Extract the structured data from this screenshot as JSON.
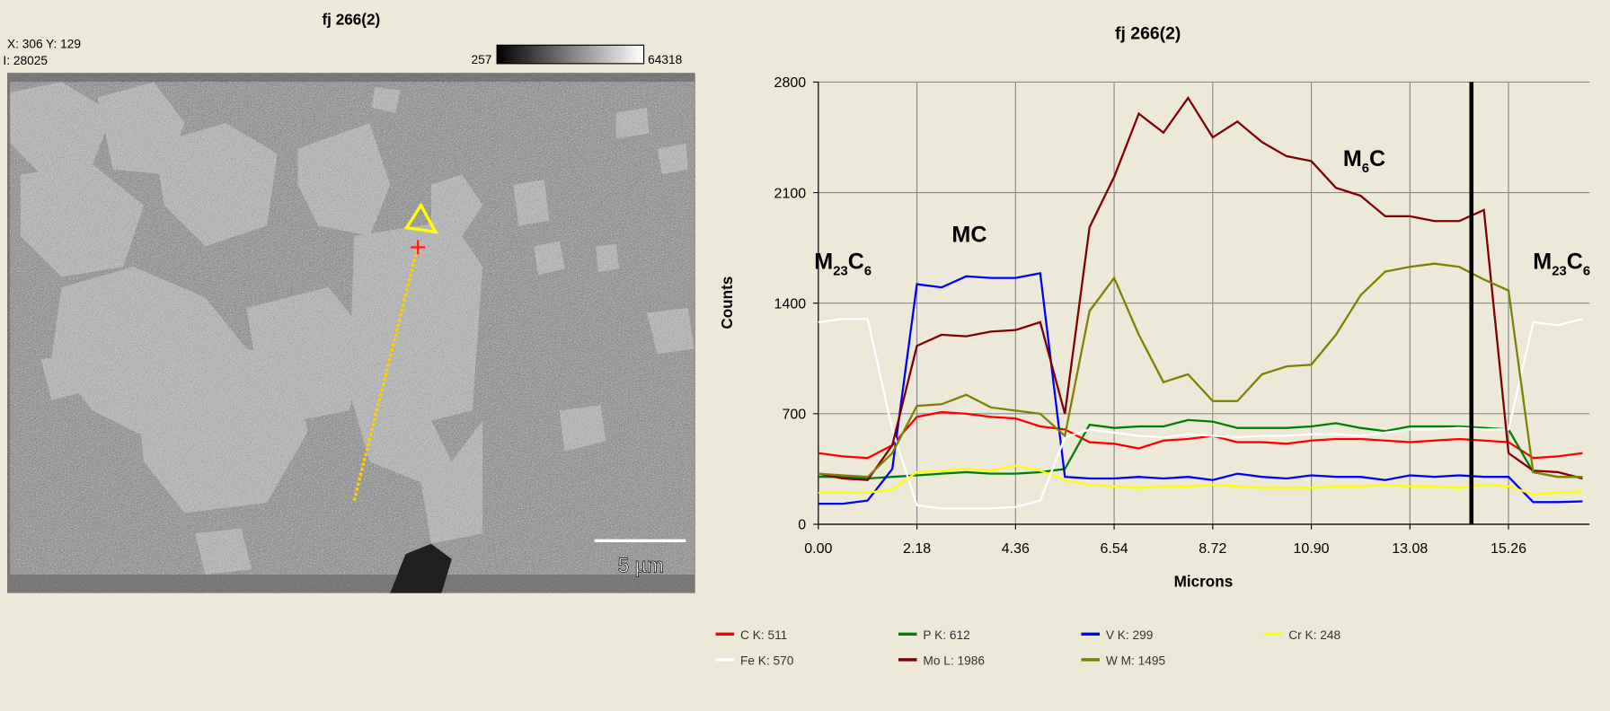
{
  "image_panel": {
    "title": "fj 266(2)",
    "cursor_xy": "X: 306 Y: 129",
    "intensity": "I: 28025",
    "scale_min": "257",
    "scale_max": "64318",
    "scale_bar": "5 µm"
  },
  "chart_data": {
    "type": "line",
    "title": "fj 266(2)",
    "x_label": "Microns",
    "y_label": "Counts",
    "x": [
      0,
      0.545,
      1.09,
      1.635,
      2.18,
      2.725,
      3.27,
      3.815,
      4.36,
      4.905,
      5.45,
      5.995,
      6.54,
      7.085,
      7.63,
      8.175,
      8.72,
      9.265,
      9.81,
      10.355,
      10.9,
      11.445,
      11.99,
      12.535,
      13.08,
      13.625,
      14.17,
      14.715,
      15.26,
      15.805,
      16.35,
      16.895
    ],
    "xlim": [
      0,
      17.05
    ],
    "ylim": [
      0,
      2800
    ],
    "xticks": [
      {
        "value": 0,
        "label": "0.00"
      },
      2.18,
      4.36,
      6.54,
      8.72,
      {
        "value": 10.9,
        "label": "10.90"
      },
      13.08,
      15.26
    ],
    "yticks": [
      0,
      700,
      1400,
      2100,
      2800
    ],
    "grid": true,
    "cursor_x": 14.44,
    "series": [
      {
        "name": "C K: 511",
        "color": "#ff0000",
        "values": [
          450,
          430,
          420,
          500,
          680,
          710,
          700,
          680,
          670,
          620,
          600,
          520,
          510,
          480,
          530,
          540,
          560,
          520,
          520,
          510,
          530,
          540,
          540,
          530,
          520,
          530,
          540,
          530,
          520,
          420,
          430,
          450
        ]
      },
      {
        "name": "P K: 612",
        "color": "#008000",
        "values": [
          300,
          300,
          290,
          300,
          310,
          320,
          330,
          320,
          320,
          330,
          350,
          630,
          610,
          620,
          620,
          660,
          650,
          610,
          610,
          610,
          620,
          640,
          610,
          590,
          620,
          620,
          620,
          610,
          600,
          330,
          300,
          300
        ]
      },
      {
        "name": "V K: 299",
        "color": "#0000ff",
        "values": [
          130,
          130,
          150,
          350,
          1520,
          1500,
          1570,
          1560,
          1560,
          1590,
          300,
          290,
          290,
          300,
          290,
          300,
          280,
          320,
          300,
          290,
          310,
          300,
          300,
          280,
          310,
          300,
          310,
          300,
          300,
          140,
          140,
          145
        ]
      },
      {
        "name": "Cr K: 248",
        "color": "#ffff00",
        "values": [
          200,
          200,
          200,
          220,
          330,
          340,
          350,
          340,
          370,
          340,
          280,
          250,
          240,
          230,
          240,
          240,
          250,
          240,
          230,
          230,
          230,
          240,
          240,
          250,
          240,
          240,
          230,
          250,
          240,
          190,
          200,
          210
        ]
      },
      {
        "name": "Fe K: 570",
        "color": "#ffffff",
        "values": [
          1280,
          1300,
          1300,
          600,
          120,
          100,
          100,
          100,
          110,
          150,
          550,
          600,
          580,
          560,
          550,
          570,
          560,
          550,
          560,
          560,
          570,
          570,
          560,
          580,
          600,
          600,
          610,
          600,
          600,
          1280,
          1260,
          1300
        ]
      },
      {
        "name": "Mo L: 1986",
        "color": "#800000",
        "values": [
          320,
          290,
          280,
          500,
          1130,
          1200,
          1190,
          1220,
          1230,
          1280,
          700,
          1880,
          2200,
          2600,
          2480,
          2700,
          2450,
          2550,
          2420,
          2330,
          2300,
          2130,
          2080,
          1950,
          1950,
          1920,
          1920,
          1990,
          450,
          340,
          330,
          290
        ]
      },
      {
        "name": "W M: 1495",
        "color": "#808000",
        "values": [
          320,
          310,
          300,
          450,
          750,
          760,
          820,
          740,
          720,
          700,
          560,
          1350,
          1560,
          1200,
          900,
          950,
          780,
          780,
          950,
          1000,
          1010,
          1200,
          1450,
          1600,
          1630,
          1650,
          1630,
          1550,
          1480,
          330,
          300,
          300
        ]
      }
    ],
    "annotations": [
      {
        "parts": [
          "M",
          "23",
          "C",
          "6"
        ]
      },
      {
        "parts": [
          "MC"
        ]
      },
      {
        "parts": [
          "M",
          "6",
          "C"
        ]
      },
      {
        "parts": [
          "M",
          "23",
          "C",
          "6"
        ]
      }
    ]
  }
}
